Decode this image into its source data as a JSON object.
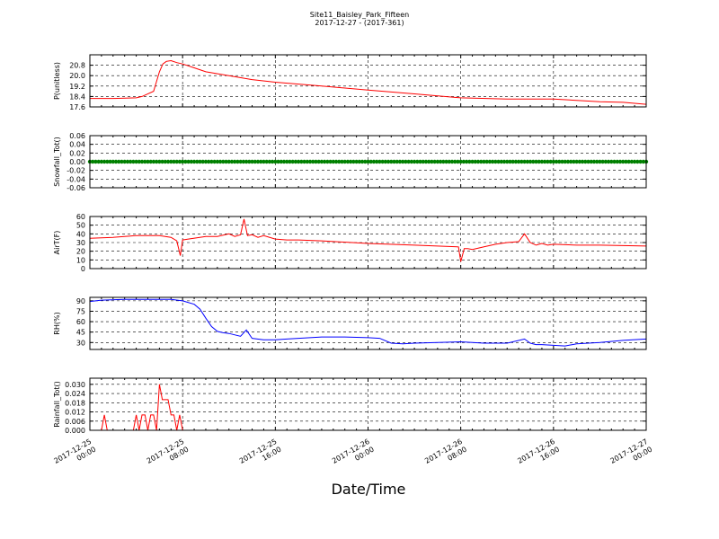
{
  "title_line1": "Site11_Baisley_Park_Fifteen",
  "title_line2": "2017-12-27 - (2017-361)",
  "xlabel": "Date/Time",
  "x_ticks": [
    {
      "l1": "2017-12-25",
      "l2": "00:00"
    },
    {
      "l1": "2017-12-25",
      "l2": "08:00"
    },
    {
      "l1": "2017-12-25",
      "l2": "16:00"
    },
    {
      "l1": "2017-12-26",
      "l2": "00:00"
    },
    {
      "l1": "2017-12-26",
      "l2": "08:00"
    },
    {
      "l1": "2017-12-26",
      "l2": "16:00"
    },
    {
      "l1": "2017-12-27",
      "l2": "00:00"
    }
  ],
  "chart_data": [
    {
      "type": "line",
      "ylabel": "P(unitless)",
      "color": "#ff0000",
      "ylim": [
        17.6,
        21.6
      ],
      "yticks": [
        "17.6",
        "18.4",
        "19.2",
        "20.0",
        "20.8"
      ],
      "xlim_hours": [
        0,
        48
      ],
      "x_hours": [
        0,
        2,
        4,
        4.5,
        5.5,
        6,
        6.3,
        6.6,
        7,
        7.5,
        8,
        9,
        10,
        12,
        14,
        16,
        20,
        24,
        28,
        32,
        36,
        40,
        44,
        46,
        48
      ],
      "values": [
        18.25,
        18.25,
        18.3,
        18.4,
        18.8,
        20.3,
        20.9,
        21.1,
        21.15,
        21.0,
        20.9,
        20.6,
        20.3,
        20.0,
        19.7,
        19.5,
        19.2,
        18.9,
        18.6,
        18.3,
        18.2,
        18.2,
        18.0,
        17.95,
        17.8
      ]
    },
    {
      "type": "scatter",
      "ylabel": "Snowfall_Tot()",
      "color": "#008000",
      "ylim": [
        -0.06,
        0.06
      ],
      "yticks": [
        "-0.06",
        "-0.04",
        "-0.02",
        "0.00",
        "0.02",
        "0.04",
        "0.06"
      ],
      "xlim_hours": [
        0,
        48
      ],
      "constant_value": 0.0,
      "step_hours": 0.25
    },
    {
      "type": "line",
      "ylabel": "AirT(F)",
      "color": "#ff0000",
      "ylim": [
        0,
        60
      ],
      "yticks": [
        "0",
        "10",
        "20",
        "30",
        "40",
        "50",
        "60"
      ],
      "xlim_hours": [
        0,
        48
      ],
      "x_hours": [
        0,
        2,
        4,
        6,
        7,
        7.5,
        7.8,
        8,
        8.5,
        10,
        11,
        12,
        12.5,
        13,
        13.3,
        13.6,
        14,
        14.5,
        15,
        16,
        17,
        18,
        20,
        24,
        28,
        31.8,
        32,
        32.3,
        32.6,
        33,
        34,
        35,
        36,
        37,
        37.5,
        38,
        38.5,
        39,
        39.5,
        40,
        42,
        44,
        48
      ],
      "values": [
        35,
        36,
        38,
        38,
        36,
        32,
        15,
        33,
        34,
        37,
        37,
        40,
        37,
        39,
        57,
        38,
        39,
        36,
        38,
        34,
        33,
        33,
        32,
        29,
        27,
        25,
        8,
        23,
        23,
        22,
        25,
        28,
        30,
        31,
        40,
        30,
        27,
        29,
        27,
        28,
        27,
        27,
        26
      ]
    },
    {
      "type": "line",
      "ylabel": "RH(%)",
      "color": "#0000ff",
      "ylim": [
        20,
        95
      ],
      "yticks": [
        "30",
        "45",
        "60",
        "75",
        "90"
      ],
      "xlim_hours": [
        0,
        48
      ],
      "x_hours": [
        0,
        1,
        3,
        6,
        7,
        8,
        9,
        9.5,
        10,
        10.5,
        11,
        11.5,
        12,
        13,
        13.5,
        14,
        15,
        16,
        17,
        18,
        20,
        22,
        24,
        25,
        26,
        27,
        28,
        30,
        32,
        33,
        34,
        36,
        37.5,
        38,
        38.5,
        39,
        40,
        41,
        42,
        44,
        46,
        48
      ],
      "values": [
        89,
        91,
        92,
        92,
        92,
        90,
        85,
        78,
        65,
        53,
        46,
        44,
        43,
        39,
        48,
        36,
        34,
        34,
        35,
        36,
        38,
        38,
        37,
        36,
        29,
        28,
        29,
        30,
        31,
        30,
        29,
        29,
        35,
        29,
        27,
        27,
        26,
        25,
        28,
        30,
        33,
        35
      ]
    },
    {
      "type": "line",
      "ylabel": "Rainfall_Tot()",
      "color": "#ff0000",
      "ylim": [
        0,
        0.034
      ],
      "yticks": [
        "0.000",
        "0.006",
        "0.012",
        "0.018",
        "0.024",
        "0.030"
      ],
      "xlim_hours": [
        0,
        48
      ],
      "x_hours": [
        0,
        1,
        1.25,
        1.5,
        3.75,
        4,
        4.25,
        4.5,
        4.75,
        5,
        5.25,
        5.5,
        5.75,
        6,
        6.25,
        6.5,
        6.75,
        7,
        7.25,
        7.5,
        7.75,
        8,
        8.25,
        48
      ],
      "values": [
        0,
        0,
        0.01,
        0,
        0,
        0.01,
        0,
        0.01,
        0.01,
        0,
        0.01,
        0.01,
        0,
        0.03,
        0.02,
        0.02,
        0.02,
        0.01,
        0.01,
        0,
        0.01,
        0,
        0,
        0
      ]
    }
  ]
}
